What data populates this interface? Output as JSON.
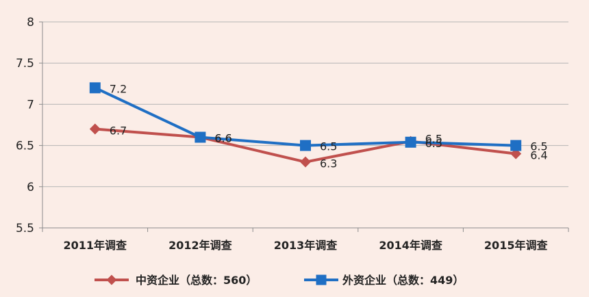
{
  "chart_data": {
    "type": "line",
    "categories": [
      "2011年调查",
      "2012年调查",
      "2013年调查",
      "2014年调查",
      "2015年调查"
    ],
    "ylim": [
      5.5,
      8
    ],
    "yticks": [
      5.5,
      6,
      6.5,
      7,
      7.5,
      8
    ],
    "ytick_labels": [
      "5.5",
      "6",
      "6.5",
      "7",
      "7.5",
      "8"
    ],
    "grid": true,
    "legend_position": "bottom",
    "series": [
      {
        "name": "中资企业（总数：560）",
        "color": "#c0504d",
        "marker": "diamond",
        "values": [
          6.7,
          6.6,
          6.3,
          6.55,
          6.4
        ],
        "labels": [
          "6.7",
          "6.6",
          "6.3",
          "6.5",
          "6.4"
        ]
      },
      {
        "name": "外资企业（总数：449）",
        "color": "#1f6fc4",
        "marker": "square",
        "values": [
          7.2,
          6.6,
          6.5,
          6.54,
          6.5
        ],
        "labels": [
          "7.2",
          "6.6",
          "6.5",
          "6.5",
          "6.5"
        ]
      }
    ]
  }
}
